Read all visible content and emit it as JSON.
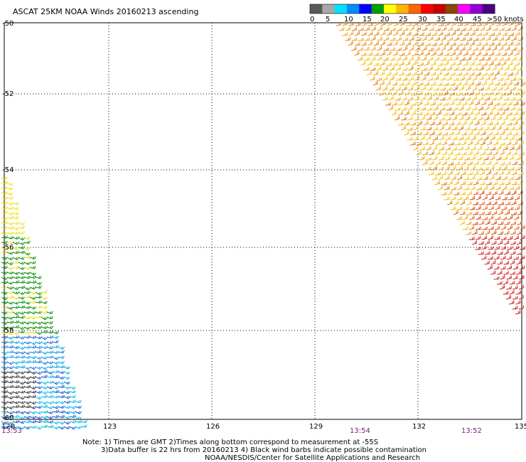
{
  "header": {
    "title": "ASCAT 25KM NOAA Winds 20160213 ascending"
  },
  "legend": {
    "colors": [
      "#5a5a5a",
      "#a8a8a8",
      "#00e0ff",
      "#008cff",
      "#0000ff",
      "#00a000",
      "#ffff00",
      "#ffb400",
      "#ff6400",
      "#ff0000",
      "#c80000",
      "#8c4600",
      "#ff00ff",
      "#9400d3",
      "#4b0082"
    ],
    "ticks": [
      "0",
      "5",
      "10",
      "15",
      "20",
      "25",
      "30",
      "35",
      "40",
      "45",
      ">50 knots"
    ]
  },
  "map": {
    "lon_ticks": [
      "120",
      "123",
      "126",
      "129",
      "132",
      "135"
    ],
    "lat_ticks": [
      "-50",
      "-52",
      "-54",
      "-56",
      "-58",
      "-60"
    ],
    "times": [
      "13:53",
      "13:54",
      "13:52"
    ]
  },
  "notes": [
    "Note: 1) Times are GMT 2)Times along bottom correspond to measurement at -55S",
    "3)Data buffer is 22 hrs from 20160213 4) Black wind barbs indicate possible contamination",
    "NOAA/NESDIS/Center for Satellite Applications and Research"
  ]
}
